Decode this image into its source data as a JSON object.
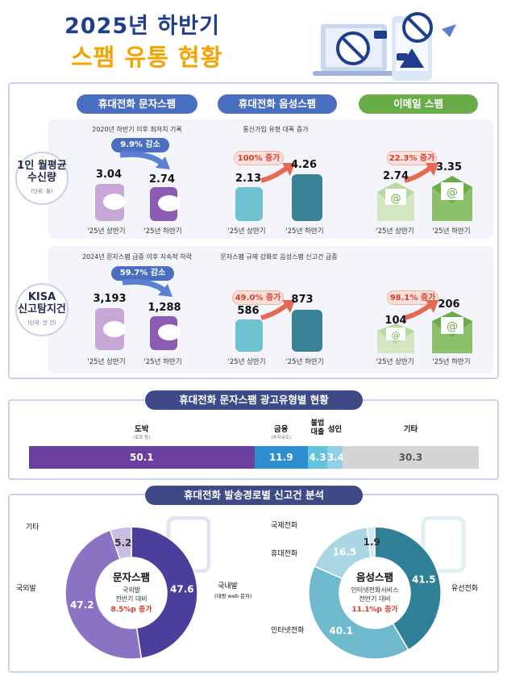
{
  "header": {
    "title_line1": "2025년 하반기",
    "title_line2": "스팸 유통 현황"
  },
  "columns": [
    "휴대전화 문자스팸",
    "휴대전화 음성스팸",
    "이메일 스팸"
  ],
  "rows": [
    {
      "label_line1": "1인 월평균",
      "label_line2": "수신량",
      "unit": "(단위: 통)",
      "cells": [
        {
          "caption": "2020년 하반기 이후 최저치 기록",
          "badge": "9.9% 감소",
          "v1": "3.04",
          "v2": "2.74",
          "p1": "'25년 상반기",
          "p2": "'25년 하반기"
        },
        {
          "caption": "통신가입 유형 대폭 증가",
          "badge": "100% 증가",
          "v1": "2.13",
          "v2": "4.26",
          "p1": "'25년 상반기",
          "p2": "'25년 하반기"
        },
        {
          "caption": "",
          "badge": "22.3% 증가",
          "v1": "2.74",
          "v2": "3.35",
          "p1": "'25년 상반기",
          "p2": "'25년 하반기"
        }
      ]
    },
    {
      "label_line1": "KISA",
      "label_line2": "신고탐지건",
      "unit": "(단위: 만 건)",
      "cells": [
        {
          "caption": "2024년 문자스팸 급증 이후 지속적 하락",
          "badge": "59.7% 감소",
          "v1": "3,193",
          "v2": "1,288",
          "p1": "'25년 상반기",
          "p2": "'25년 하반기"
        },
        {
          "caption": "문자스팸 규제 강화로 음성스팸 신고건 급증",
          "badge": "49.0% 증가",
          "v1": "586",
          "v2": "873",
          "p1": "'25년 상반기",
          "p2": "'25년 하반기"
        },
        {
          "caption": "",
          "badge": "98.1% 증가",
          "v1": "104",
          "v2": "206",
          "p1": "'25년 상반기",
          "p2": "'25년 하반기"
        }
      ]
    }
  ],
  "ad_section": {
    "title": "휴대전화 문자스팸 광고유형별 현황"
  },
  "route_section": {
    "title": "휴대전화 발송경로별 신고건 분석"
  },
  "chart_data": [
    {
      "type": "bar",
      "stacked": true,
      "orientation": "horizontal",
      "title": "휴대전화 문자스팸 광고유형별 현황",
      "categories": [
        {
          "name": "도박",
          "sub": "(로또 등)",
          "value": 50.1,
          "color": "#6a3fa0"
        },
        {
          "name": "금융",
          "sub": "(투자유도)",
          "value": 11.9,
          "color": "#2e8fd0"
        },
        {
          "name": "불법대출",
          "sub": "",
          "value": 4.3,
          "color": "#63c3dc"
        },
        {
          "name": "성인",
          "sub": "",
          "value": 3.4,
          "color": "#8fd0e6"
        },
        {
          "name": "기타",
          "sub": "",
          "value": 30.3,
          "color": "#d4d4d4"
        }
      ]
    },
    {
      "type": "pie",
      "donut": true,
      "center_title": "문자스팸",
      "center_sub1": "국외발",
      "center_sub2": "전반기 대비",
      "center_highlight": "8.5%p 증가",
      "slices": [
        {
          "name": "국내발",
          "sub": "(대량 web 문자)",
          "value": 47.6,
          "color": "#4a3f9a"
        },
        {
          "name": "국외발",
          "sub": "",
          "value": 47.2,
          "color": "#8a73c2"
        },
        {
          "name": "기타",
          "sub": "",
          "value": 5.2,
          "color": "#c9bde3"
        }
      ]
    },
    {
      "type": "pie",
      "donut": true,
      "center_title": "음성스팸",
      "center_sub1": "인터넷전화서비스",
      "center_sub2": "전반기 대비",
      "center_highlight": "11.1%p 증가",
      "slices": [
        {
          "name": "유선전화",
          "sub": "",
          "value": 41.5,
          "color": "#2f7f97"
        },
        {
          "name": "인터넷전화",
          "sub": "",
          "value": 40.1,
          "color": "#6fb9cd"
        },
        {
          "name": "휴대전화",
          "sub": "",
          "value": 16.5,
          "color": "#a9d6e2"
        },
        {
          "name": "국제전화",
          "sub": "",
          "value": 1.9,
          "color": "#d3e9ef"
        }
      ]
    }
  ]
}
